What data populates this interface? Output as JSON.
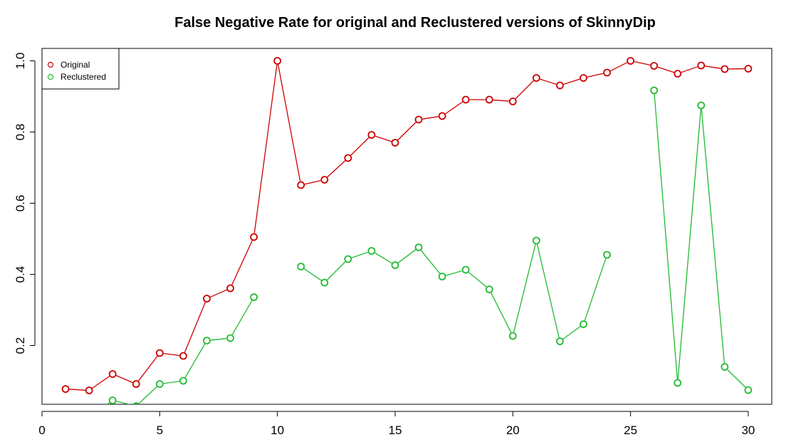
{
  "chart_data": {
    "type": "line",
    "title": "False Negative Rate for original and Reclustered versions of SkinnyDip",
    "xlabel": "",
    "ylabel": "",
    "xlim": [
      0,
      31
    ],
    "ylim": [
      0.035,
      1.035
    ],
    "x_ticks": [
      "0",
      "5",
      "10",
      "15",
      "20",
      "25",
      "30"
    ],
    "y_ticks": [
      "0.2",
      "0.4",
      "0.6",
      "0.8",
      "1.0"
    ],
    "legend": {
      "placement": "top-left",
      "entries": [
        "Original",
        "Reclustered"
      ]
    },
    "series": [
      {
        "name": "Original",
        "color": "#cc0000",
        "x": [
          1,
          2,
          3,
          4,
          5,
          6,
          7,
          8,
          9,
          10,
          11,
          12,
          13,
          14,
          15,
          16,
          17,
          18,
          19,
          20,
          21,
          22,
          23,
          24,
          25,
          26,
          27,
          28,
          29,
          30
        ],
        "values": [
          0.078,
          0.074,
          0.12,
          0.092,
          0.179,
          0.171,
          0.332,
          0.361,
          0.505,
          1.0,
          0.651,
          0.666,
          0.727,
          0.792,
          0.77,
          0.835,
          0.845,
          0.891,
          0.891,
          0.886,
          0.952,
          0.931,
          0.952,
          0.967,
          1.0,
          0.986,
          0.964,
          0.987,
          0.977,
          0.978
        ]
      },
      {
        "name": "Reclustered",
        "color": "#22bb33",
        "x": [
          1,
          2,
          3,
          4,
          5,
          6,
          7,
          8,
          9,
          10,
          11,
          12,
          13,
          14,
          15,
          16,
          17,
          18,
          19,
          20,
          21,
          22,
          23,
          24,
          25,
          26,
          27,
          28,
          29,
          30
        ],
        "values": [
          0.0,
          0.0,
          0.046,
          0.03,
          0.092,
          0.101,
          0.214,
          0.221,
          0.336,
          null,
          0.422,
          0.377,
          0.443,
          0.466,
          0.426,
          0.476,
          0.394,
          0.413,
          0.358,
          0.227,
          0.495,
          0.212,
          0.26,
          0.455,
          null,
          0.917,
          0.095,
          0.875,
          0.14,
          0.075
        ]
      }
    ]
  }
}
